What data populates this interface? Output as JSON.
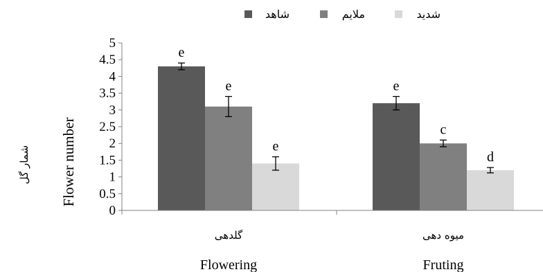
{
  "chart_data": {
    "type": "bar",
    "ylabel": "Flower number",
    "ylabel_fa": "شمار گل",
    "ylim": [
      0,
      5
    ],
    "yticks": [
      "0",
      "0.5",
      "1",
      "1.5",
      "2",
      "2.5",
      "3",
      "3.5",
      "4",
      "4.5",
      "5"
    ],
    "categories": [
      {
        "fa": "گلدهی",
        "en": "Flowering"
      },
      {
        "fa": "میوه دهی",
        "en": "Fruting"
      }
    ],
    "series": [
      {
        "name": "شاهد",
        "color": "#595959",
        "values": [
          4.3,
          3.2
        ],
        "errors": [
          0.1,
          0.2
        ],
        "labels": [
          "e",
          "e"
        ]
      },
      {
        "name": "ملایم",
        "color": "#808080",
        "values": [
          3.1,
          2.0
        ],
        "errors": [
          0.3,
          0.1
        ],
        "labels": [
          "e",
          "c"
        ]
      },
      {
        "name": "شدید",
        "color": "#d9d9d9",
        "values": [
          1.4,
          1.2
        ],
        "errors": [
          0.2,
          0.08
        ],
        "labels": [
          "e",
          "d"
        ]
      }
    ],
    "legend_position": "top",
    "grid": false
  }
}
